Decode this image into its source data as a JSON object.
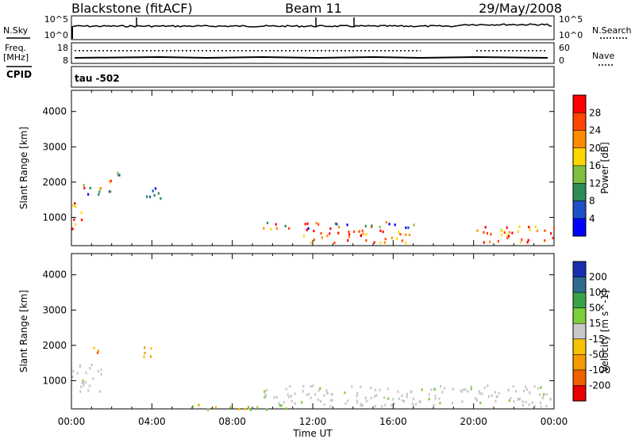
{
  "header": {
    "station": "Blackstone (fitACF)",
    "beam": "Beam 11",
    "date": "29/May/2008"
  },
  "top_panels": {
    "nsky_label": "N.Sky",
    "nsky_hi": "10^5",
    "nsky_lo": "10^0",
    "nsearch_label": "N.Search",
    "freq_label": "Freq.",
    "freq_unit": "[MHz]",
    "freq_hi": "18",
    "freq_lo": "8",
    "nave_label": "Nave",
    "nave_hi": "60",
    "nave_lo": "0",
    "cpid_label": "CPID",
    "cpid_value": "tau -502"
  },
  "axes": {
    "ylabel": "Slant Range [km]",
    "yticks": [
      "4000",
      "3000",
      "2000",
      "1000"
    ],
    "xticks": [
      "00:00",
      "04:00",
      "08:00",
      "12:00",
      "16:00",
      "20:00",
      "00:00"
    ],
    "xlabel": "Time UT"
  },
  "power_colorbar": {
    "label": "Power [dB]",
    "ticks": [
      "28",
      "24",
      "20",
      "16",
      "12",
      "8",
      "4"
    ],
    "colors": [
      "#ff0000",
      "#ff4500",
      "#ff8c00",
      "#ffd700",
      "#7fbf3f",
      "#2e8b57",
      "#1e50c8",
      "#0000ff"
    ]
  },
  "velocity_colorbar": {
    "label": "Velocity [m s^-1]",
    "ticks": [
      "200",
      "100",
      "50",
      "15",
      "-15",
      "-50",
      "-100",
      "-200"
    ],
    "colors": [
      "#1a2fb0",
      "#2e6b8f",
      "#3aa34a",
      "#7ccf3a",
      "#c8c8c8",
      "#f5c400",
      "#f59a00",
      "#f06000",
      "#e60000"
    ]
  },
  "chart_data": [
    {
      "type": "heatmap",
      "title": "Power",
      "xlabel": "Time UT",
      "ylabel": "Slant Range [km]",
      "xlim": [
        "00:00",
        "00:00"
      ],
      "ylim": [
        200,
        4600
      ],
      "zlabel": "Power [dB]",
      "zlim": [
        0,
        30
      ],
      "regions": [
        {
          "t": [
            0.0,
            0.6
          ],
          "r": [
            700,
            1500
          ],
          "level": "high"
        },
        {
          "t": [
            0.4,
            2.0
          ],
          "r": [
            1600,
            2100
          ],
          "level": "mixed"
        },
        {
          "t": [
            2.0,
            2.6
          ],
          "r": [
            2200,
            2600
          ],
          "level": "low"
        },
        {
          "t": [
            3.5,
            4.5
          ],
          "r": [
            1500,
            1900
          ],
          "level": "low"
        },
        {
          "t": [
            9.5,
            17.5
          ],
          "r": [
            700,
            900
          ],
          "level": "mixed"
        },
        {
          "t": [
            11.5,
            17.0
          ],
          "r": [
            300,
            700
          ],
          "level": "high"
        },
        {
          "t": [
            20.0,
            24.0
          ],
          "r": [
            300,
            800
          ],
          "level": "high"
        }
      ]
    },
    {
      "type": "heatmap",
      "title": "Velocity",
      "xlabel": "Time UT",
      "ylabel": "Slant Range [km]",
      "xlim": [
        "00:00",
        "00:00"
      ],
      "ylim": [
        200,
        4600
      ],
      "zlabel": "Velocity [m s^-1]",
      "zlim": [
        -200,
        200
      ],
      "regions": [
        {
          "t": [
            0.0,
            1.5
          ],
          "r": [
            700,
            1500
          ],
          "level": "near-zero"
        },
        {
          "t": [
            1.0,
            1.6
          ],
          "r": [
            1800,
            2100
          ],
          "level": "negative"
        },
        {
          "t": [
            3.5,
            4.5
          ],
          "r": [
            1700,
            2000
          ],
          "level": "negative"
        },
        {
          "t": [
            9.5,
            24.0
          ],
          "r": [
            300,
            900
          ],
          "level": "near-zero"
        },
        {
          "t": [
            6.0,
            12.0
          ],
          "r": [
            200,
            350
          ],
          "level": "slightly positive"
        }
      ]
    }
  ]
}
